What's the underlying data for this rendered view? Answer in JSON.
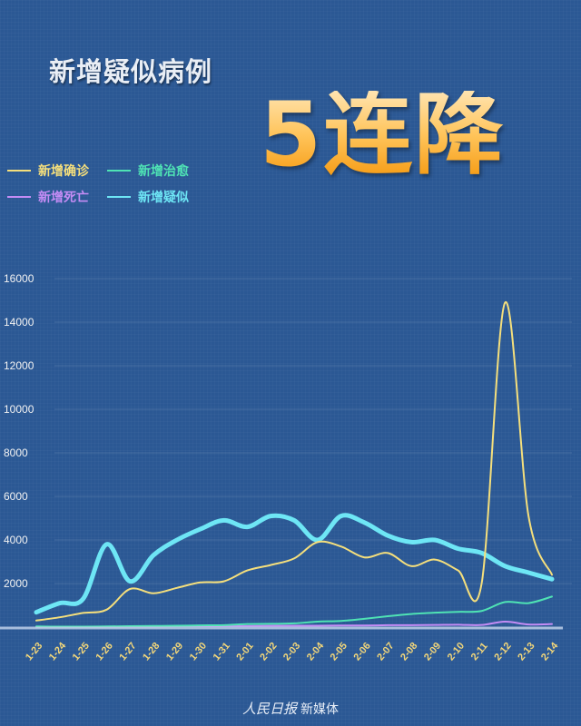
{
  "header": {
    "subtitle": "新增疑似病例",
    "headline": "5连降"
  },
  "legend": [
    {
      "label": "新增确诊",
      "color": "#f5df7c"
    },
    {
      "label": "新增治愈",
      "color": "#4fe3b4"
    },
    {
      "label": "新增死亡",
      "color": "#c48cf5"
    },
    {
      "label": "新增疑似",
      "color": "#6ee6f5"
    }
  ],
  "footer": {
    "brand": "人民日报",
    "suffix": "新媒体"
  },
  "chart_data": {
    "type": "line",
    "title": "新增疑似病例 5连降",
    "xlabel": "",
    "ylabel": "",
    "ylim": [
      0,
      16000
    ],
    "yticks": [
      2000,
      4000,
      6000,
      8000,
      10000,
      12000,
      14000,
      16000
    ],
    "grid": true,
    "legend_position": "top-left",
    "categories": [
      "1-23",
      "1-24",
      "1-25",
      "1-26",
      "1-27",
      "1-28",
      "1-29",
      "1-30",
      "1-31",
      "2-01",
      "2-02",
      "2-03",
      "2-04",
      "2-05",
      "2-06",
      "2-07",
      "2-08",
      "2-09",
      "2-10",
      "2-11",
      "2-12",
      "2-13",
      "2-14"
    ],
    "series": [
      {
        "name": "新增确诊",
        "color": "#f5df7c",
        "width": 2,
        "values": [
          300,
          450,
          650,
          800,
          1750,
          1550,
          1800,
          2050,
          2100,
          2600,
          2850,
          3150,
          3900,
          3700,
          3200,
          3400,
          2800,
          3100,
          2600,
          2000,
          14900,
          5100,
          2400
        ]
      },
      {
        "name": "新增治愈",
        "color": "#4fe3b4",
        "width": 2,
        "values": [
          30,
          20,
          20,
          30,
          40,
          50,
          60,
          80,
          90,
          140,
          150,
          170,
          250,
          280,
          380,
          500,
          600,
          660,
          700,
          740,
          1150,
          1100,
          1400
        ]
      },
      {
        "name": "新增死亡",
        "color": "#c48cf5",
        "width": 2,
        "values": [
          10,
          15,
          15,
          20,
          25,
          25,
          40,
          40,
          45,
          45,
          57,
          64,
          65,
          73,
          73,
          86,
          89,
          97,
          108,
          97,
          250,
          120,
          140
        ]
      },
      {
        "name": "新增疑似",
        "color": "#6ee6f5",
        "width": 5,
        "values": [
          680,
          1100,
          1300,
          3800,
          2100,
          3300,
          4000,
          4500,
          4900,
          4600,
          5100,
          4900,
          4000,
          5100,
          4800,
          4200,
          3900,
          4000,
          3600,
          3400,
          2800,
          2500,
          2200
        ]
      }
    ]
  }
}
